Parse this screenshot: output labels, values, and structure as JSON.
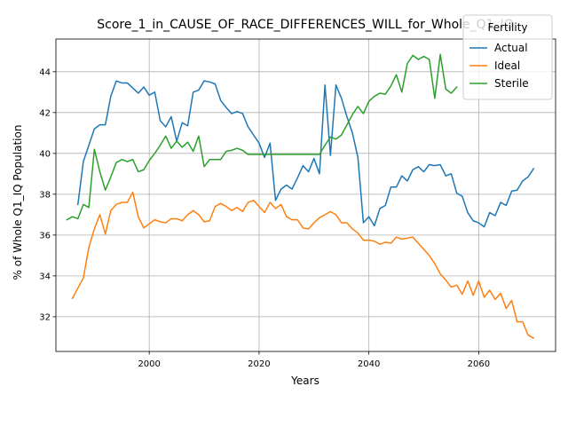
{
  "chart_data": {
    "type": "line",
    "title": "Score_1_in_CAUSE_OF_RACE_DIFFERENCES_WILL_for_Whole_Q1_IQ",
    "xlabel": "Years",
    "ylabel": "% of Whole Q1_IQ Population",
    "xlim": [
      1983,
      2074
    ],
    "ylim": [
      30.3,
      45.6
    ],
    "xticks": [
      2000,
      2020,
      2040,
      2060
    ],
    "yticks": [
      32,
      34,
      36,
      38,
      40,
      42,
      44
    ],
    "grid": true,
    "legend": {
      "title": "Fertility",
      "placement": "top-right"
    },
    "series": [
      {
        "name": "Actual",
        "color": "#1f77b4",
        "x": [
          1987,
          1988,
          1989,
          1990,
          1991,
          1992,
          1993,
          1994,
          1995,
          1996,
          1997,
          1998,
          1999,
          2000,
          2001,
          2002,
          2003,
          2004,
          2005,
          2006,
          2007,
          2008,
          2009,
          2010,
          2011,
          2012,
          2013,
          2014,
          2015,
          2016,
          2017,
          2018,
          2019,
          2020,
          2021,
          2022,
          2023,
          2024,
          2025,
          2026,
          2027,
          2028,
          2029,
          2030,
          2031,
          2032,
          2033,
          2034,
          2035,
          2036,
          2037,
          2038,
          2039,
          2040,
          2041,
          2042,
          2043,
          2044,
          2045,
          2046,
          2047,
          2048,
          2049,
          2050,
          2051,
          2052,
          2053,
          2054,
          2055,
          2056,
          2057,
          2058,
          2059,
          2060,
          2061,
          2062,
          2063,
          2064,
          2065,
          2066,
          2067,
          2068,
          2069,
          2070
        ],
        "y": [
          37.5,
          39.6,
          40.4,
          41.2,
          41.4,
          41.4,
          42.8,
          43.55,
          43.45,
          43.45,
          43.2,
          42.95,
          43.25,
          42.85,
          43.0,
          41.6,
          41.3,
          41.8,
          40.6,
          41.5,
          41.35,
          43.0,
          43.1,
          43.55,
          43.5,
          43.4,
          42.6,
          42.25,
          41.95,
          42.05,
          41.95,
          41.3,
          40.9,
          40.5,
          39.8,
          40.5,
          37.7,
          38.25,
          38.45,
          38.25,
          38.8,
          39.4,
          39.1,
          39.75,
          39.0,
          43.35,
          39.9,
          43.35,
          42.7,
          41.8,
          41.0,
          39.8,
          36.6,
          36.9,
          36.45,
          37.3,
          37.45,
          38.35,
          38.35,
          38.9,
          38.65,
          39.2,
          39.35,
          39.1,
          39.45,
          39.4,
          39.45,
          38.9,
          39.0,
          38.05,
          37.9,
          37.1,
          36.7,
          36.6,
          36.4,
          37.1,
          36.95,
          37.6,
          37.45,
          38.15,
          38.2,
          38.65,
          38.85,
          39.25
        ]
      },
      {
        "name": "Ideal",
        "color": "#ff7f0e",
        "x": [
          1986,
          1987,
          1988,
          1989,
          1990,
          1991,
          1992,
          1993,
          1994,
          1995,
          1996,
          1997,
          1998,
          1999,
          2000,
          2001,
          2002,
          2003,
          2004,
          2005,
          2006,
          2007,
          2008,
          2009,
          2010,
          2011,
          2012,
          2013,
          2014,
          2015,
          2016,
          2017,
          2018,
          2019,
          2020,
          2021,
          2022,
          2023,
          2024,
          2025,
          2026,
          2027,
          2028,
          2029,
          2030,
          2031,
          2032,
          2033,
          2034,
          2035,
          2036,
          2037,
          2038,
          2039,
          2040,
          2041,
          2042,
          2043,
          2044,
          2045,
          2046,
          2047,
          2048,
          2049,
          2050,
          2051,
          2052,
          2053,
          2054,
          2055,
          2056,
          2057,
          2058,
          2059,
          2060,
          2061,
          2062,
          2063,
          2064,
          2065,
          2066,
          2067,
          2068,
          2069,
          2070
        ],
        "y": [
          32.9,
          33.4,
          33.9,
          35.4,
          36.3,
          37.0,
          36.05,
          37.2,
          37.5,
          37.6,
          37.6,
          38.1,
          36.9,
          36.35,
          36.55,
          36.75,
          36.65,
          36.6,
          36.8,
          36.8,
          36.7,
          37.0,
          37.2,
          37.0,
          36.65,
          36.7,
          37.4,
          37.55,
          37.4,
          37.2,
          37.35,
          37.15,
          37.6,
          37.7,
          37.4,
          37.1,
          37.6,
          37.3,
          37.5,
          36.9,
          36.75,
          36.75,
          36.35,
          36.3,
          36.6,
          36.85,
          37.0,
          37.15,
          37.0,
          36.6,
          36.6,
          36.3,
          36.1,
          35.75,
          35.75,
          35.7,
          35.55,
          35.65,
          35.6,
          35.9,
          35.8,
          35.85,
          35.9,
          35.6,
          35.3,
          35.0,
          34.6,
          34.1,
          33.8,
          33.45,
          33.55,
          33.1,
          33.75,
          33.05,
          33.75,
          32.95,
          33.3,
          32.85,
          33.15,
          32.4,
          32.8,
          31.75,
          31.75,
          31.1,
          30.95
        ]
      },
      {
        "name": "Sterile",
        "color": "#2ca02c",
        "x": [
          1985,
          1986,
          1987,
          1988,
          1989,
          1990,
          1991,
          1992,
          1993,
          1994,
          1995,
          1996,
          1997,
          1998,
          1999,
          2000,
          2001,
          2002,
          2003,
          2004,
          2005,
          2006,
          2007,
          2008,
          2009,
          2010,
          2011,
          2012,
          2013,
          2014,
          2015,
          2016,
          2017,
          2018,
          2019,
          2020,
          2021,
          2022,
          2023,
          2024,
          2025,
          2026,
          2027,
          2028,
          2029,
          2030,
          2031,
          2032,
          2033,
          2034,
          2035,
          2036,
          2037,
          2038,
          2039,
          2040,
          2041,
          2042,
          2043,
          2044,
          2045,
          2046,
          2047,
          2048,
          2049,
          2050,
          2051,
          2052,
          2053,
          2054,
          2055,
          2056
        ],
        "y": [
          36.75,
          36.9,
          36.8,
          37.5,
          37.35,
          40.2,
          39.1,
          38.2,
          38.85,
          39.55,
          39.7,
          39.6,
          39.7,
          39.1,
          39.2,
          39.65,
          40.0,
          40.4,
          40.85,
          40.25,
          40.6,
          40.3,
          40.55,
          40.1,
          40.85,
          39.35,
          39.7,
          39.7,
          39.7,
          40.1,
          40.15,
          40.25,
          40.15,
          39.95,
          39.95,
          39.95,
          39.95,
          39.95,
          39.95,
          39.95,
          39.95,
          39.95,
          39.95,
          39.95,
          39.95,
          39.95,
          39.95,
          40.4,
          40.8,
          40.7,
          40.9,
          41.4,
          41.9,
          42.3,
          41.95,
          42.55,
          42.8,
          42.95,
          42.9,
          43.3,
          43.85,
          43.0,
          44.4,
          44.8,
          44.6,
          44.75,
          44.6,
          42.7,
          44.85,
          43.15,
          42.95,
          43.25
        ]
      }
    ]
  }
}
